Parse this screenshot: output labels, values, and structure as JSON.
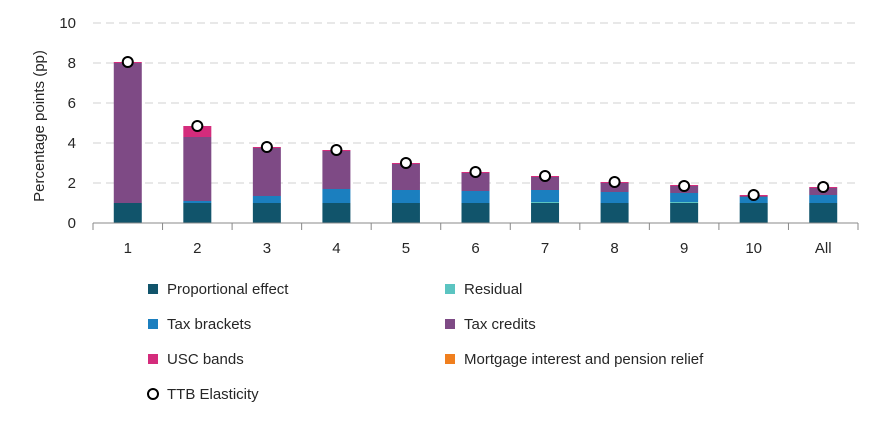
{
  "chart_data": {
    "type": "bar",
    "stacked": true,
    "title": "",
    "xlabel": "",
    "ylabel": "Percentage points (pp)",
    "ylim": [
      0,
      10
    ],
    "yticks": [
      0,
      2,
      4,
      6,
      8,
      10
    ],
    "grid": true,
    "legend_position": "bottom",
    "categories": [
      "1",
      "2",
      "3",
      "4",
      "5",
      "6",
      "7",
      "8",
      "9",
      "10",
      "All"
    ],
    "series": [
      {
        "name": "Proportional effect",
        "color": "#11546b",
        "values": [
          1.0,
          1.0,
          1.0,
          1.0,
          1.0,
          1.0,
          1.0,
          1.0,
          1.0,
          1.0,
          1.0
        ]
      },
      {
        "name": "Residual",
        "color": "#5bc4c1",
        "values": [
          0,
          0,
          0,
          0,
          0,
          0,
          0.05,
          0,
          0.05,
          0,
          0
        ]
      },
      {
        "name": "Tax brackets",
        "color": "#1b7fbf",
        "values": [
          0,
          0.1,
          0.35,
          0.7,
          0.65,
          0.6,
          0.6,
          0.55,
          0.45,
          0.3,
          0.4
        ]
      },
      {
        "name": "Tax credits",
        "color": "#7e4a85",
        "values": [
          7.0,
          3.2,
          2.4,
          1.9,
          1.3,
          0.9,
          0.65,
          0.45,
          0.35,
          0.05,
          0.35
        ]
      },
      {
        "name": "USC bands",
        "color": "#d42c7c",
        "values": [
          0.05,
          0.55,
          0.05,
          0.05,
          0.05,
          0.05,
          0.05,
          0.05,
          0.05,
          0.05,
          0.05
        ]
      },
      {
        "name": "Mortgage interest and pension relief",
        "color": "#f07f1e",
        "values": [
          0,
          0,
          0,
          0,
          0,
          0,
          0,
          0,
          0,
          0,
          0
        ]
      }
    ],
    "markers": {
      "name": "TTB Elasticity",
      "values": [
        8.05,
        4.85,
        3.8,
        3.65,
        3.0,
        2.55,
        2.35,
        2.05,
        1.85,
        1.4,
        1.8
      ]
    },
    "colors": {
      "grid": "#d0d0d0",
      "axis": "#888888",
      "marker_stroke": "#000000",
      "marker_fill": "#ffffff"
    }
  }
}
